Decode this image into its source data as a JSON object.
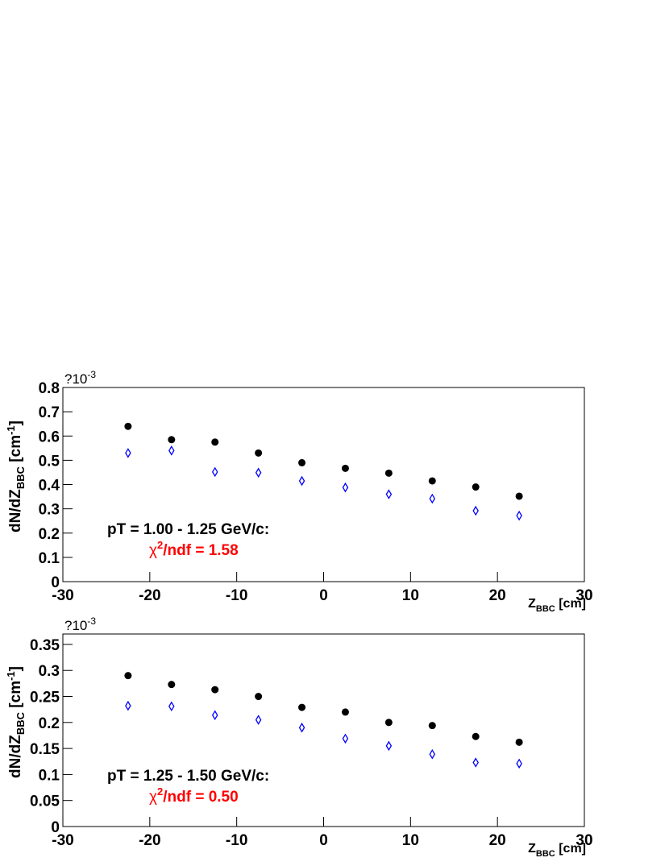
{
  "chart_data": [
    {
      "type": "scatter",
      "multiplier": {
        "base": "?10",
        "exponent": "-3"
      },
      "ylabel": {
        "main": "dN/dZ",
        "sub": "BBC",
        "unit": " [cm",
        "sup": "-1",
        "end": "]"
      },
      "xlabel": {
        "main": "Z",
        "sub": "BBC",
        "unit": " [cm]"
      },
      "annotation": {
        "text": "pT = 1.00 - 1.25 GeV/c:",
        "chi": "χ",
        "chi_sup": "2",
        "chi_text": "/ndf = 1.58",
        "chi_color": "#ff0000"
      },
      "x": [
        -22.5,
        -17.5,
        -12.5,
        -7.5,
        -2.5,
        2.5,
        7.5,
        12.5,
        17.5,
        22.5
      ],
      "series": [
        {
          "color": "#000000",
          "marker": "circle",
          "values": [
            0.64,
            0.585,
            0.575,
            0.53,
            0.49,
            0.467,
            0.447,
            0.415,
            0.39,
            0.352
          ]
        },
        {
          "color": "#0000ff",
          "marker": "diamond",
          "values": [
            0.53,
            0.54,
            0.452,
            0.449,
            0.415,
            0.388,
            0.36,
            0.342,
            0.292,
            0.272
          ]
        }
      ],
      "xlim": [
        -30,
        30
      ],
      "xticks": [
        -30,
        -20,
        -10,
        0,
        10,
        20,
        30
      ],
      "ylim": [
        0,
        0.8
      ],
      "yticks": [
        0,
        0.1,
        0.2,
        0.3,
        0.4,
        0.5,
        0.6,
        0.7,
        0.8
      ]
    },
    {
      "type": "scatter",
      "multiplier": {
        "base": "?10",
        "exponent": "-3"
      },
      "ylabel": {
        "main": "dN/dZ",
        "sub": "BBC",
        "unit": " [cm",
        "sup": "-1",
        "end": "]"
      },
      "xlabel": {
        "main": "Z",
        "sub": "BBC",
        "unit": " [cm]"
      },
      "annotation": {
        "text": "pT = 1.25 - 1.50 GeV/c:",
        "chi": "χ",
        "chi_sup": "2",
        "chi_text": "/ndf = 0.50",
        "chi_color": "#ff0000"
      },
      "x": [
        -22.5,
        -17.5,
        -12.5,
        -7.5,
        -2.5,
        2.5,
        7.5,
        12.5,
        17.5,
        22.5
      ],
      "series": [
        {
          "color": "#000000",
          "marker": "circle",
          "values": [
            0.29,
            0.273,
            0.263,
            0.25,
            0.229,
            0.22,
            0.2,
            0.194,
            0.173,
            0.162
          ]
        },
        {
          "color": "#0000ff",
          "marker": "diamond",
          "values": [
            0.232,
            0.231,
            0.214,
            0.205,
            0.19,
            0.169,
            0.155,
            0.139,
            0.123,
            0.121
          ]
        }
      ],
      "xlim": [
        -30,
        30
      ],
      "xticks": [
        -30,
        -20,
        -10,
        0,
        10,
        20,
        30
      ],
      "ylim": [
        0,
        0.37
      ],
      "yticks": [
        0,
        0.05,
        0.1,
        0.15,
        0.2,
        0.25,
        0.3,
        0.35
      ]
    }
  ]
}
